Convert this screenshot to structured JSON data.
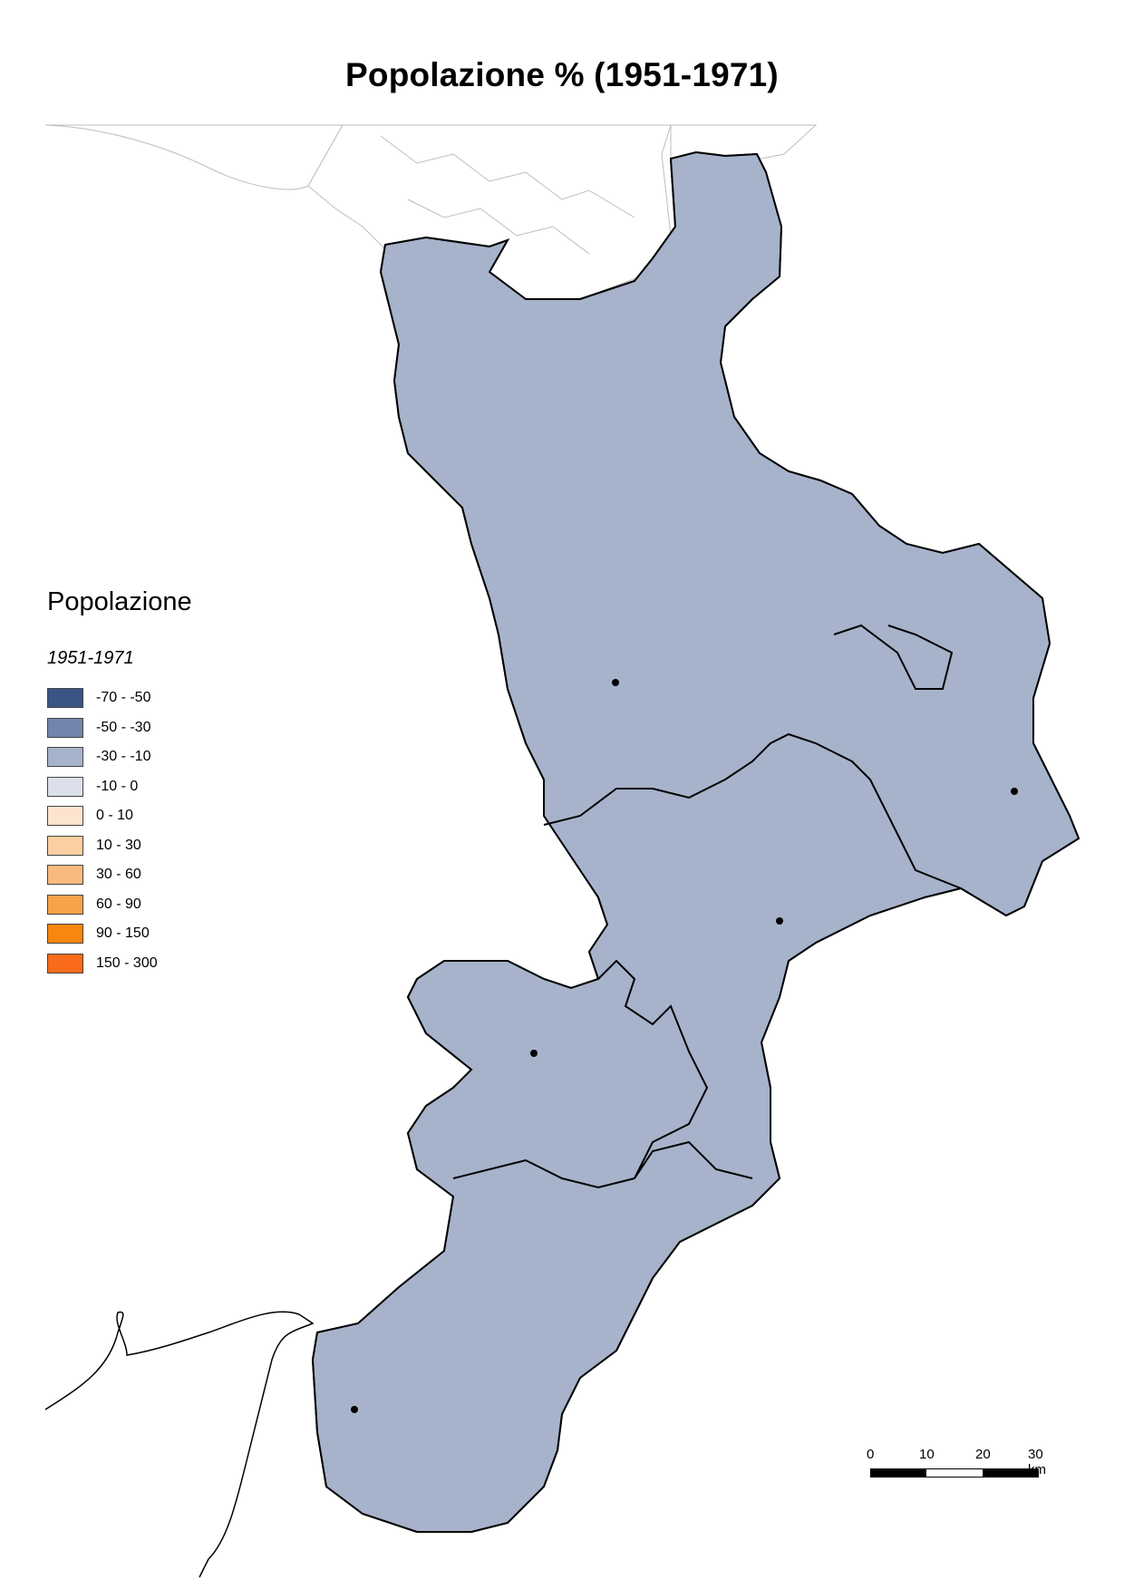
{
  "title": "Popolazione % (1951-1971)",
  "legend": {
    "title": "Popolazione",
    "subtitle": "1951-1971",
    "classes": [
      {
        "label": "-70 - -50",
        "color": "#3a5484"
      },
      {
        "label": "-50 - -30",
        "color": "#7285ac"
      },
      {
        "label": "-30 - -10",
        "color": "#a7b3cb"
      },
      {
        "label": "-10 - 0",
        "color": "#dbe0ea"
      },
      {
        "label": "0 - 10",
        "color": "#fde4ce"
      },
      {
        "label": "10 - 30",
        "color": "#fbcfa3"
      },
      {
        "label": "30 - 60",
        "color": "#f8ba7f"
      },
      {
        "label": "60 - 90",
        "color": "#f8a347"
      },
      {
        "label": "90 - 150",
        "color": "#f7870e"
      },
      {
        "label": "150 - 300",
        "color": "#f96b1a"
      }
    ]
  },
  "scale_bar": {
    "ticks": [
      "0",
      "10",
      "20",
      "30 km"
    ],
    "colors": [
      "#000000",
      "#ffffff",
      "#000000"
    ]
  },
  "map_colors": {
    "land_outline": "#000000",
    "neighbour_fill": "#ffffff",
    "neighbour_border": "#bdbdbd",
    "municipal_border": "#5a5a5a"
  }
}
